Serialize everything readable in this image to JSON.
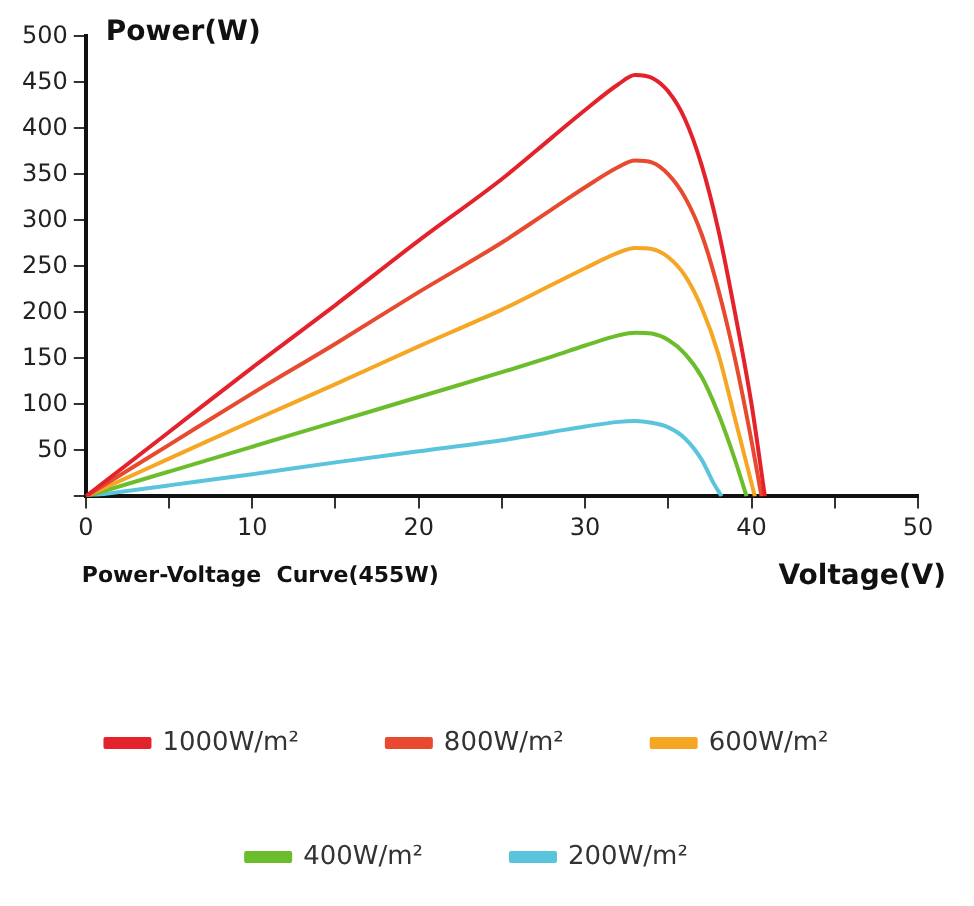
{
  "chart_data": {
    "type": "line",
    "xlabel": "Voltage(V)",
    "ylabel": "Power(W)",
    "annotations": [
      "Power-Voltage  Curve(455W)"
    ],
    "xlim": [
      0,
      50
    ],
    "xticks": [
      0,
      {
        "value": 5,
        "label": null
      },
      10,
      {
        "value": 15,
        "label": null
      },
      20,
      {
        "value": 25,
        "label": null
      },
      30,
      {
        "value": 35,
        "label": null
      },
      40,
      {
        "value": 45,
        "label": null
      },
      50
    ],
    "ylim": [
      0,
      500
    ],
    "yticks": [
      {
        "value": 0,
        "label": null
      },
      50,
      100,
      150,
      200,
      250,
      300,
      350,
      400,
      450,
      500
    ],
    "grid": false,
    "legend": "bottom",
    "marker": "none",
    "line_style": "solid",
    "series": [
      {
        "name": "1000W/m²",
        "color": "#e3222b",
        "x": [
          0,
          5,
          10,
          15,
          20,
          25,
          28,
          30,
          32,
          33,
          34,
          35,
          36,
          37,
          38,
          39,
          40,
          40.8
        ],
        "values": [
          0,
          70,
          140,
          208,
          278,
          345,
          390,
          420,
          448,
          458,
          455,
          440,
          410,
          360,
          290,
          200,
          100,
          0
        ]
      },
      {
        "name": "800W/m²",
        "color": "#e84a30",
        "x": [
          0,
          5,
          10,
          15,
          20,
          25,
          28,
          30,
          32,
          33,
          34,
          35,
          36,
          37,
          38,
          39,
          40,
          40.6
        ],
        "values": [
          0,
          56,
          112,
          166,
          222,
          276,
          312,
          336,
          358,
          365,
          363,
          350,
          325,
          285,
          225,
          150,
          60,
          0
        ]
      },
      {
        "name": "600W/m²",
        "color": "#f5a623",
        "x": [
          0,
          5,
          10,
          15,
          20,
          25,
          28,
          30,
          32,
          33,
          34,
          35,
          36,
          37,
          38,
          39,
          40.2
        ],
        "values": [
          0,
          41,
          82,
          122,
          163,
          203,
          230,
          248,
          265,
          270,
          269,
          260,
          240,
          205,
          155,
          85,
          0
        ]
      },
      {
        "name": "400W/m²",
        "color": "#6cbd2c",
        "x": [
          0,
          5,
          10,
          15,
          20,
          25,
          28,
          30,
          32,
          33,
          34,
          35,
          36,
          37,
          38,
          39,
          39.7
        ],
        "values": [
          0,
          27,
          54,
          81,
          108,
          135,
          152,
          164,
          175,
          178,
          177,
          170,
          155,
          130,
          90,
          40,
          0
        ]
      },
      {
        "name": "200W/m²",
        "color": "#5bc4dd",
        "x": [
          0,
          5,
          10,
          15,
          20,
          25,
          28,
          30,
          32,
          33,
          34,
          35,
          36,
          37,
          37.7,
          38.2
        ],
        "values": [
          0,
          12,
          24,
          37,
          49,
          61,
          70,
          76,
          81,
          82,
          80,
          75,
          63,
          40,
          15,
          0
        ]
      }
    ]
  }
}
